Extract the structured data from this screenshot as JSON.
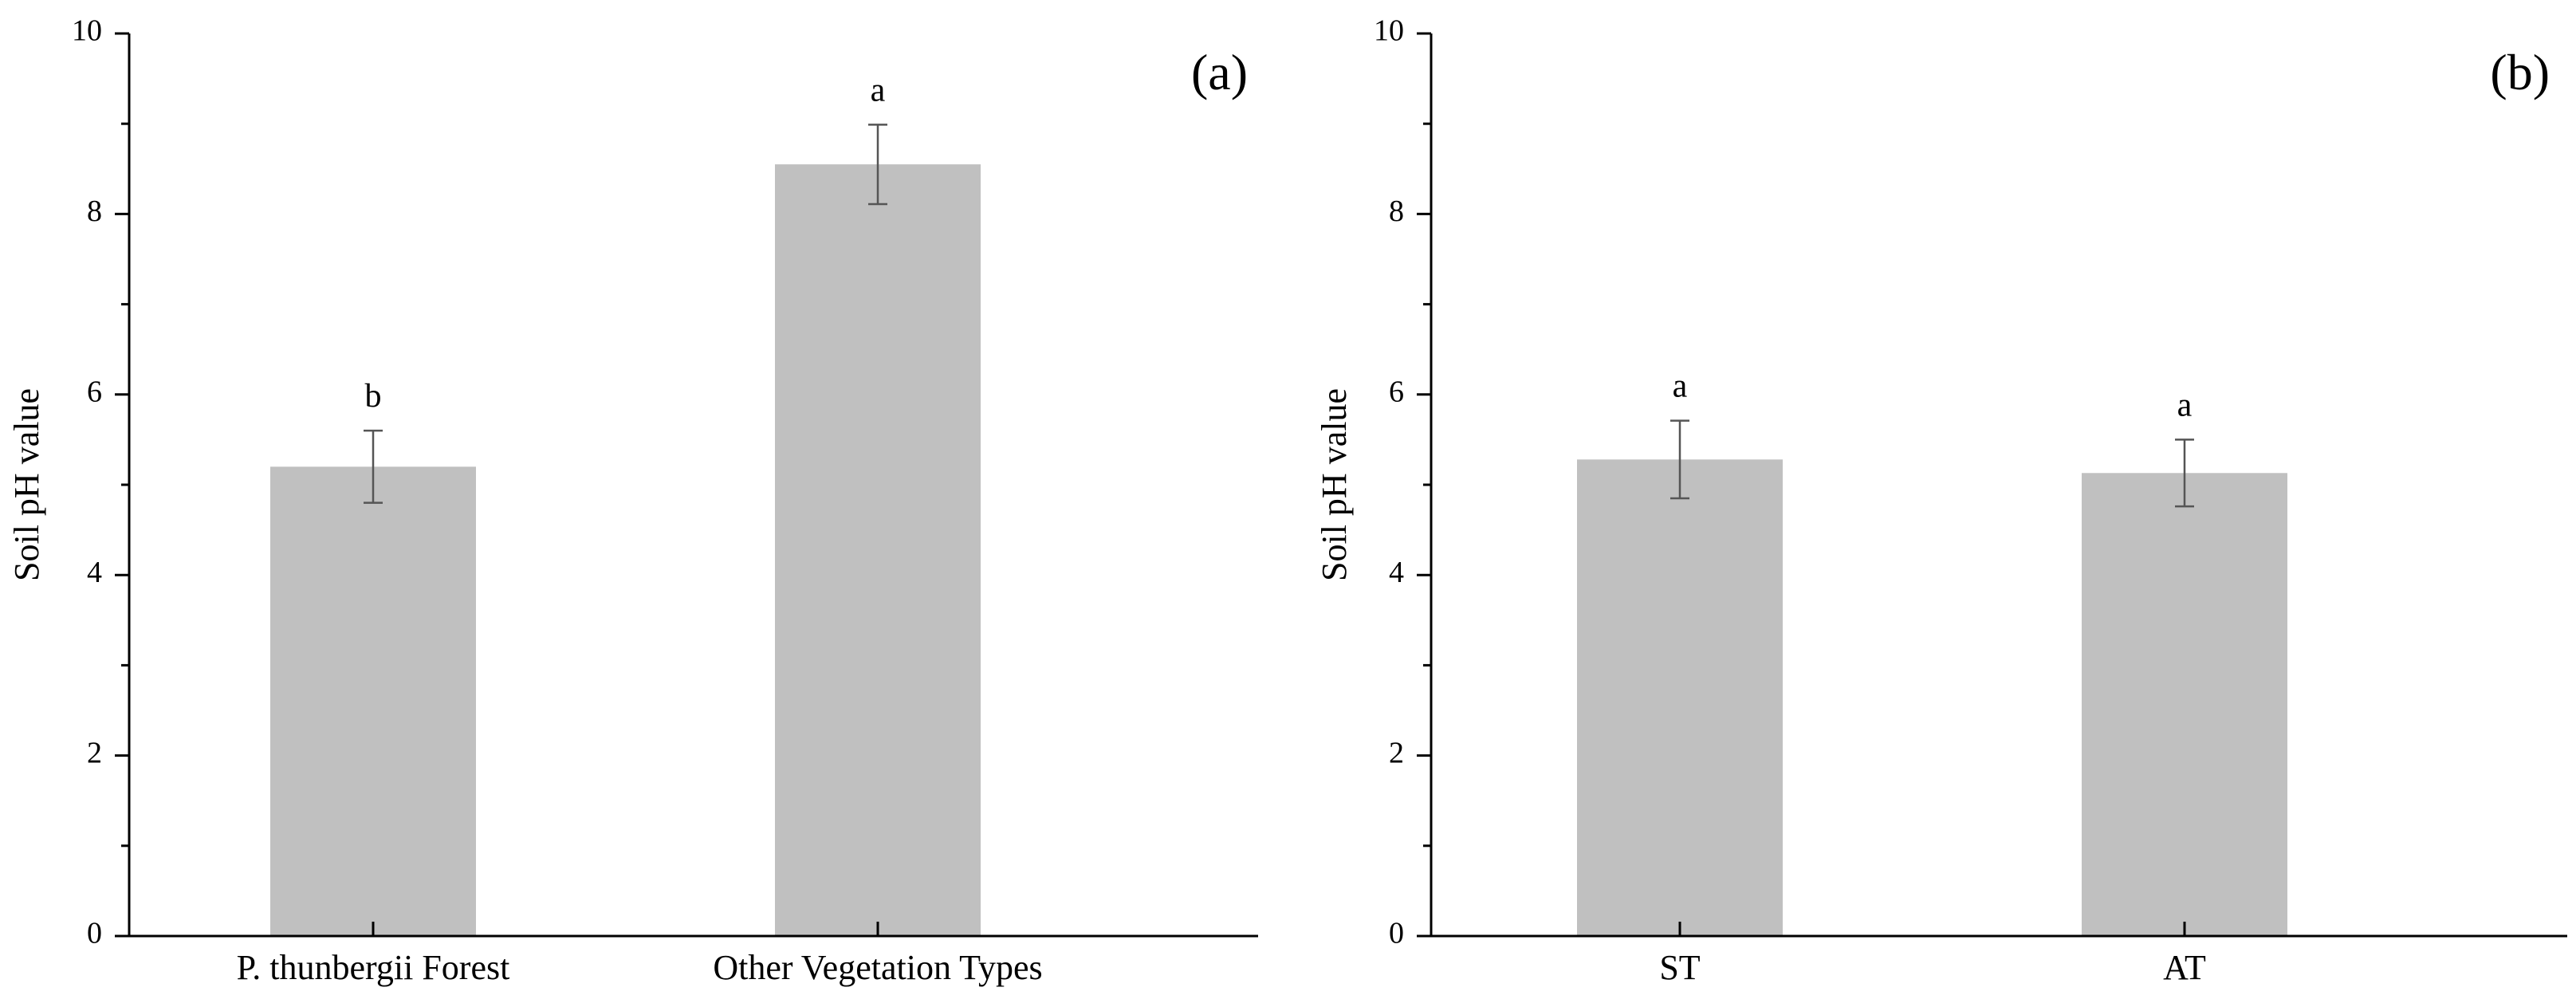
{
  "figure_title": "",
  "chart_data": [
    {
      "type": "bar",
      "panel_label": "(a)",
      "title": "",
      "xlabel": "",
      "ylabel": "Soil pH value",
      "ylim": [
        0,
        10
      ],
      "yticks": [
        0,
        2,
        4,
        6,
        8,
        10
      ],
      "ytick_labels": [
        "0",
        "2",
        "4",
        "6",
        "8",
        "10"
      ],
      "grid": false,
      "categories": [
        "P. thunbergii Forest",
        "Other Vegetation Types"
      ],
      "values": [
        5.2,
        8.55
      ],
      "errors": [
        0.4,
        0.44
      ],
      "significance_letters": [
        "b",
        "a"
      ],
      "bar_color": "#c0c0c0",
      "error_color": "#555555"
    },
    {
      "type": "bar",
      "panel_label": "(b)",
      "title": "",
      "xlabel": "",
      "ylabel": "Soil pH value",
      "ylim": [
        0,
        10
      ],
      "yticks": [
        0,
        2,
        4,
        6,
        8,
        10
      ],
      "ytick_labels": [
        "0",
        "2",
        "4",
        "6",
        "8",
        "10"
      ],
      "grid": false,
      "categories": [
        "ST",
        "AT"
      ],
      "values": [
        5.28,
        5.13
      ],
      "errors": [
        0.43,
        0.37
      ],
      "significance_letters": [
        "a",
        "a"
      ],
      "bar_color": "#c0c0c0",
      "error_color": "#555555"
    }
  ]
}
